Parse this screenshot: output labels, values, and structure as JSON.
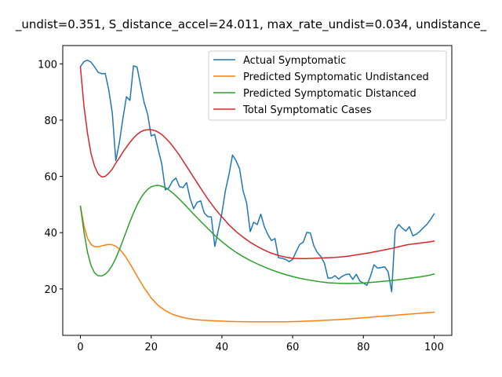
{
  "chart_data": {
    "type": "line",
    "title": "_undist=0.351, S_distance_accel=24.011, max_rate_undist=0.034, undistance_",
    "xlabel": "",
    "ylabel": "",
    "xlim": [
      -5,
      105
    ],
    "ylim": [
      3.5,
      106.5
    ],
    "xticks": [
      0,
      20,
      40,
      60,
      80,
      100
    ],
    "yticks": [
      20,
      40,
      60,
      80,
      100
    ],
    "grid": false,
    "legend_position": "top-right",
    "series": [
      {
        "name": "Actual Symptomatic",
        "color": "#1f77b4",
        "x": [
          0,
          1,
          2,
          3,
          4,
          5,
          6,
          7,
          8,
          9,
          10,
          11,
          12,
          13,
          14,
          15,
          16,
          17,
          18,
          19,
          20,
          21,
          22,
          23,
          24,
          25,
          26,
          27,
          28,
          29,
          30,
          31,
          32,
          33,
          34,
          35,
          36,
          37,
          38,
          39,
          40,
          41,
          42,
          43,
          44,
          45,
          46,
          47,
          48,
          49,
          50,
          51,
          52,
          53,
          54,
          55,
          56,
          57,
          58,
          59,
          60,
          61,
          62,
          63,
          64,
          65,
          66,
          67,
          68,
          69,
          70,
          71,
          72,
          73,
          74,
          75,
          76,
          77,
          78,
          79,
          80,
          81,
          82,
          83,
          84,
          85,
          86,
          87,
          88,
          89,
          90,
          91,
          92,
          93,
          94,
          95,
          96,
          97,
          98,
          99,
          100
        ],
        "y": [
          99.0,
          100.8,
          101.3,
          100.6,
          98.9,
          97.0,
          96.5,
          96.6,
          90.8,
          82.6,
          65.6,
          72.0,
          80.5,
          88.3,
          87.0,
          99.3,
          98.9,
          92.5,
          86.3,
          82.1,
          74.4,
          74.9,
          69.5,
          64.4,
          55.2,
          55.9,
          58.3,
          59.4,
          56.4,
          56.0,
          57.8,
          52.2,
          48.5,
          50.8,
          51.3,
          47.0,
          45.7,
          45.6,
          35.1,
          41.0,
          47.0,
          55.0,
          60.7,
          67.6,
          65.6,
          62.7,
          54.8,
          50.5,
          40.4,
          43.7,
          42.9,
          46.6,
          42.1,
          39.3,
          37.2,
          37.9,
          31.1,
          30.9,
          30.5,
          29.7,
          30.5,
          33.3,
          35.8,
          36.6,
          40.1,
          39.9,
          35.3,
          32.9,
          31.5,
          29.1,
          23.8,
          23.9,
          24.7,
          23.5,
          24.5,
          25.1,
          25.3,
          23.4,
          25.2,
          22.8,
          22.1,
          21.3,
          24.5,
          28.6,
          27.4,
          27.6,
          27.9,
          26.1,
          19.0,
          41.0,
          42.9,
          41.6,
          40.6,
          42.1,
          38.9,
          39.5,
          40.5,
          41.8,
          43.0,
          44.7,
          46.7
        ]
      },
      {
        "name": "Predicted Symptomatic Undistanced",
        "color": "#ff7f0e",
        "x": [
          0,
          1,
          2,
          3,
          4,
          5,
          6,
          7,
          8,
          9,
          10,
          11,
          12,
          13,
          14,
          15,
          16,
          18,
          20,
          22,
          24,
          26,
          28,
          30,
          32,
          34,
          36,
          38,
          40,
          42,
          44,
          46,
          48,
          50,
          52,
          54,
          56,
          58,
          60,
          62,
          64,
          66,
          68,
          70,
          72,
          74,
          76,
          78,
          80,
          82,
          84,
          86,
          88,
          90,
          92,
          94,
          96,
          98,
          100
        ],
        "y": [
          49.4,
          42.5,
          38.0,
          35.8,
          35.0,
          35.0,
          35.3,
          35.6,
          35.8,
          35.7,
          35.2,
          34.2,
          32.8,
          31.0,
          29.0,
          26.8,
          24.6,
          20.4,
          16.8,
          14.1,
          12.3,
          11.0,
          10.2,
          9.6,
          9.2,
          8.95,
          8.8,
          8.65,
          8.55,
          8.45,
          8.4,
          8.35,
          8.3,
          8.3,
          8.3,
          8.3,
          8.3,
          8.32,
          8.37,
          8.45,
          8.55,
          8.65,
          8.77,
          8.9,
          9.05,
          9.2,
          9.36,
          9.55,
          9.75,
          9.95,
          10.15,
          10.35,
          10.55,
          10.75,
          10.95,
          11.15,
          11.35,
          11.55,
          11.75
        ]
      },
      {
        "name": "Predicted Symptomatic Distanced",
        "color": "#2ca02c",
        "x": [
          0,
          1,
          2,
          3,
          4,
          5,
          6,
          7,
          8,
          9,
          10,
          11,
          12,
          13,
          14,
          15,
          16,
          17,
          18,
          19,
          20,
          21,
          22,
          23,
          24,
          25,
          26,
          27,
          28,
          30,
          32,
          34,
          36,
          38,
          40,
          42,
          44,
          46,
          48,
          50,
          52,
          54,
          56,
          58,
          60,
          62,
          64,
          66,
          68,
          70,
          72,
          74,
          76,
          78,
          80,
          82,
          84,
          86,
          88,
          90,
          92,
          94,
          96,
          98,
          100
        ],
        "y": [
          49.4,
          40.3,
          33.0,
          28.3,
          25.7,
          24.7,
          24.6,
          25.2,
          26.5,
          28.4,
          30.9,
          33.9,
          37.2,
          40.6,
          43.9,
          47.0,
          49.8,
          52.2,
          54.0,
          55.4,
          56.3,
          56.7,
          56.8,
          56.5,
          56.0,
          55.2,
          54.2,
          53.1,
          51.9,
          49.3,
          46.6,
          44.0,
          41.5,
          39.0,
          36.8,
          34.8,
          33.0,
          31.5,
          30.1,
          28.9,
          27.8,
          26.8,
          25.9,
          25.1,
          24.4,
          23.8,
          23.3,
          22.9,
          22.5,
          22.2,
          22.05,
          21.95,
          21.95,
          22.0,
          22.1,
          22.3,
          22.5,
          22.75,
          23.0,
          23.3,
          23.6,
          23.95,
          24.3,
          24.7,
          25.3
        ]
      },
      {
        "name": "Total Symptomatic Cases",
        "color": "#d62728",
        "x": [
          0,
          1,
          2,
          3,
          4,
          5,
          6,
          7,
          8,
          9,
          10,
          11,
          12,
          13,
          14,
          15,
          16,
          17,
          18,
          19,
          20,
          21,
          22,
          23,
          24,
          25,
          26,
          28,
          30,
          32,
          34,
          36,
          38,
          40,
          42,
          44,
          46,
          48,
          50,
          52,
          54,
          56,
          58,
          60,
          62,
          64,
          66,
          68,
          70,
          72,
          74,
          76,
          78,
          80,
          82,
          84,
          86,
          88,
          90,
          92,
          94,
          96,
          98,
          100
        ],
        "y": [
          98.8,
          85.0,
          75.3,
          68.1,
          63.6,
          60.9,
          59.8,
          60.0,
          61.1,
          62.6,
          64.7,
          66.6,
          68.6,
          70.4,
          72.1,
          73.6,
          74.9,
          75.8,
          76.4,
          76.6,
          76.6,
          76.3,
          75.7,
          74.9,
          73.7,
          72.4,
          70.9,
          67.5,
          63.6,
          59.7,
          55.8,
          52.0,
          48.6,
          45.6,
          42.8,
          40.4,
          38.4,
          36.6,
          35.1,
          33.8,
          32.7,
          31.9,
          31.3,
          30.9,
          30.8,
          30.8,
          30.9,
          31.0,
          31.1,
          31.2,
          31.4,
          31.7,
          32.1,
          32.5,
          32.9,
          33.4,
          33.9,
          34.4,
          35.0,
          35.6,
          36.0,
          36.3,
          36.6,
          37.0
        ]
      }
    ]
  }
}
